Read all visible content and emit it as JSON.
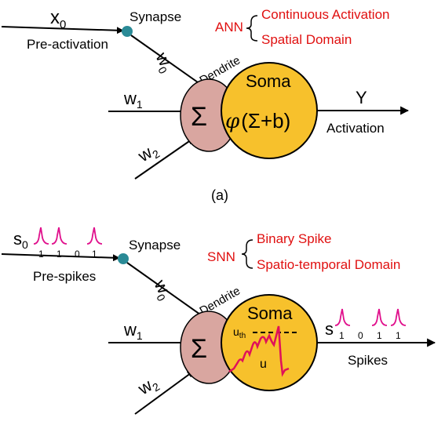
{
  "colors": {
    "accent_red": "#e01010",
    "soma_fill": "#f7c12c",
    "dendrite_fill": "#d9a6a0",
    "synapse_fill": "#2a8a96",
    "spike_color": "#e0108c"
  },
  "ann": {
    "input0_main": "x",
    "input0_sub": "0",
    "synapse_label": "Synapse",
    "preactivation_label": "Pre-activation",
    "w0_main": "w",
    "w0_sub": "0",
    "dendrite_label": "Dendrite",
    "w1_main": "w",
    "w1_sub": "1",
    "w2_main": "w",
    "w2_sub": "2",
    "sum_symbol": "Σ",
    "soma_label": "Soma",
    "soma_formula_phi": "φ",
    "soma_formula_rest": "(Σ+b)",
    "output_label": "Y",
    "activation_label": "Activation",
    "net_name": "ANN",
    "prop1": "Continuous Activation",
    "prop2": "Spatial Domain",
    "caption": "(a)"
  },
  "snn": {
    "input0_main": "s",
    "input0_sub": "0",
    "input_bits": [
      "1",
      "1",
      "0",
      "1"
    ],
    "synapse_label": "Synapse",
    "prespikes_label": "Pre-spikes",
    "w0_main": "w",
    "w0_sub": "0",
    "dendrite_label": "Dendrite",
    "w1_main": "w",
    "w1_sub": "1",
    "w2_main": "w",
    "w2_sub": "2",
    "sum_symbol": "Σ",
    "soma_label": "Soma",
    "threshold_main": "u",
    "threshold_sub": "th",
    "potential_label": "u",
    "output_main": "s",
    "output_bits": [
      "1",
      "0",
      "1",
      "1"
    ],
    "spikes_label": "Spikes",
    "net_name": "SNN",
    "prop1": "Binary Spike",
    "prop2": "Spatio-temporal Domain"
  }
}
